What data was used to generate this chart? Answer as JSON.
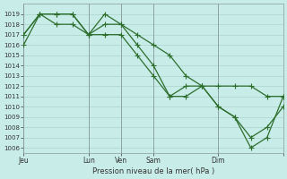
{
  "bg_color": "#c8ece8",
  "grid_color": "#aad4cc",
  "line_color": "#2d6e2d",
  "marker_color": "#2d6e2d",
  "xlabel_text": "Pression niveau de la mer( hPa )",
  "ylim": [
    1005.5,
    1020.0
  ],
  "yticks": [
    1006,
    1007,
    1008,
    1009,
    1010,
    1011,
    1012,
    1013,
    1014,
    1015,
    1016,
    1017,
    1018,
    1019
  ],
  "xlim": [
    0,
    96
  ],
  "xtick_positions": [
    0,
    24,
    36,
    48,
    72,
    96
  ],
  "xtick_labels": [
    "Jeu",
    "Lun",
    "Ven",
    "Sam",
    "Dim",
    ""
  ],
  "vlines": [
    0,
    24,
    36,
    48,
    72,
    96
  ],
  "line1_x": [
    0,
    6,
    12,
    18,
    24,
    30,
    36,
    42,
    48,
    54,
    60,
    66,
    72,
    78,
    84,
    90,
    96
  ],
  "line1_y": [
    1016,
    1019,
    1019,
    1019,
    1017,
    1019,
    1018,
    1017,
    1016,
    1015,
    1013,
    1012,
    1012,
    1012,
    1012,
    1011,
    1011
  ],
  "line2_x": [
    0,
    6,
    12,
    18,
    24,
    30,
    36,
    42,
    48,
    54,
    60,
    66,
    72,
    78,
    84,
    90,
    96
  ],
  "line2_y": [
    1017,
    1019,
    1018,
    1018,
    1017,
    1018,
    1018,
    1016,
    1014,
    1011,
    1011,
    1012,
    1010,
    1009,
    1007,
    1008,
    1010
  ],
  "line3_x": [
    0,
    6,
    12,
    18,
    24,
    30,
    36,
    42,
    48,
    54,
    60,
    66,
    72,
    78,
    84,
    90,
    96
  ],
  "line3_y": [
    1017,
    1019,
    1019,
    1019,
    1017,
    1017,
    1017,
    1015,
    1013,
    1011,
    1012,
    1012,
    1010,
    1009,
    1006,
    1007,
    1011
  ]
}
